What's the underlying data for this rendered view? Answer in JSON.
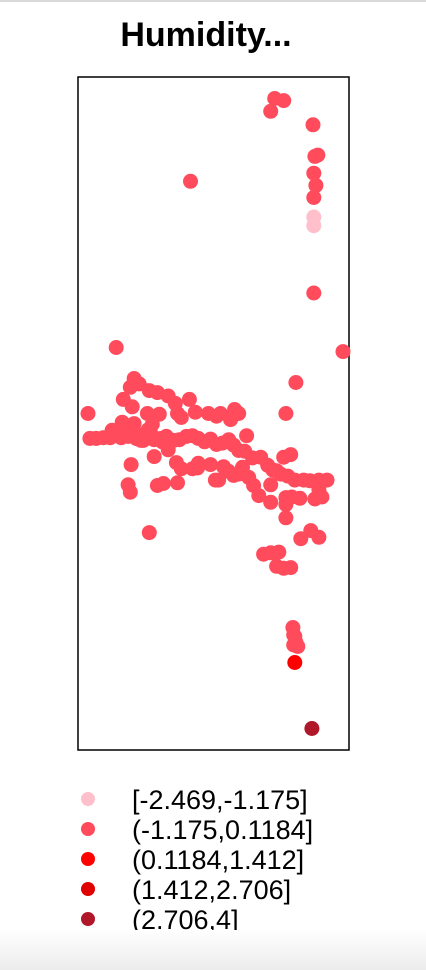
{
  "chart_data": {
    "type": "scatter",
    "title": "Humidity...",
    "xlabel": "",
    "ylabel": "",
    "xlim": [
      0,
      100
    ],
    "ylim": [
      0,
      100
    ],
    "grid": false,
    "legend_position": "bottom",
    "legend": [
      {
        "label": "[-2.469,-1.175]",
        "color": "#ffc0cb"
      },
      {
        "label": "(-1.175,0.1184]",
        "color": "#ff4b5c"
      },
      {
        "label": "(0.1184,1.412]",
        "color": "#ff0000"
      },
      {
        "label": "(1.412,2.706]",
        "color": "#e00000"
      },
      {
        "label": "(2.706,4]",
        "color": "#b0182a"
      }
    ],
    "series": [
      {
        "class_index": 0,
        "points": [
          [
            87.0,
            79.2
          ],
          [
            87.0,
            77.9
          ]
        ]
      },
      {
        "class_index": 1,
        "points": [
          [
            72.6,
            96.8
          ],
          [
            75.9,
            96.5
          ],
          [
            71.1,
            94.9
          ],
          [
            86.7,
            92.9
          ],
          [
            88.5,
            88.4
          ],
          [
            87.4,
            88.2
          ],
          [
            87.0,
            85.7
          ],
          [
            87.8,
            83.9
          ],
          [
            87.0,
            82.1
          ],
          [
            41.5,
            84.5
          ],
          [
            87.0,
            67.9
          ],
          [
            97.8,
            59.2
          ],
          [
            14.1,
            59.8
          ],
          [
            20.7,
            55.2
          ],
          [
            19.3,
            53.9
          ],
          [
            22.6,
            54.4
          ],
          [
            26.3,
            53.4
          ],
          [
            29.3,
            53.1
          ],
          [
            33.3,
            52.6
          ],
          [
            35.9,
            51.5
          ],
          [
            41.1,
            52.1
          ],
          [
            16.7,
            52.1
          ],
          [
            36.7,
            50.0
          ],
          [
            43.3,
            50.2
          ],
          [
            48.1,
            50.0
          ],
          [
            52.6,
            50.0
          ],
          [
            59.3,
            50.0
          ],
          [
            57.8,
            50.6
          ],
          [
            51.1,
            49.6
          ],
          [
            56.3,
            49.1
          ],
          [
            76.7,
            50.0
          ],
          [
            80.4,
            54.6
          ],
          [
            20.0,
            51.0
          ],
          [
            25.6,
            50.0
          ],
          [
            30.0,
            49.9
          ],
          [
            38.1,
            49.4
          ],
          [
            3.7,
            50.0
          ],
          [
            4.4,
            46.3
          ],
          [
            6.7,
            46.3
          ],
          [
            9.3,
            46.4
          ],
          [
            11.9,
            46.4
          ],
          [
            15.9,
            46.4
          ],
          [
            18.5,
            46.6
          ],
          [
            14.8,
            46.8
          ],
          [
            12.6,
            47.5
          ],
          [
            17.0,
            47.3
          ],
          [
            19.6,
            46.9
          ],
          [
            21.5,
            46.3
          ],
          [
            23.3,
            46.0
          ],
          [
            25.9,
            46.5
          ],
          [
            28.1,
            46.1
          ],
          [
            30.7,
            46.3
          ],
          [
            32.6,
            46.6
          ],
          [
            35.2,
            46.0
          ],
          [
            37.4,
            46.1
          ],
          [
            40.0,
            46.6
          ],
          [
            42.2,
            46.7
          ],
          [
            44.4,
            46.3
          ],
          [
            46.7,
            45.8
          ],
          [
            48.9,
            46.2
          ],
          [
            51.1,
            45.4
          ],
          [
            53.3,
            45.6
          ],
          [
            55.6,
            46.1
          ],
          [
            57.4,
            45.3
          ],
          [
            59.3,
            44.5
          ],
          [
            61.5,
            44.4
          ],
          [
            62.2,
            46.7
          ],
          [
            64.4,
            43.4
          ],
          [
            67.4,
            43.5
          ],
          [
            70.0,
            42.3
          ],
          [
            71.9,
            41.6
          ],
          [
            74.8,
            41.0
          ],
          [
            77.4,
            40.7
          ],
          [
            80.0,
            40.1
          ],
          [
            83.3,
            40.1
          ],
          [
            85.6,
            40.0
          ],
          [
            88.9,
            40.1
          ],
          [
            91.9,
            40.1
          ],
          [
            88.9,
            38.7
          ],
          [
            90.0,
            37.6
          ],
          [
            87.4,
            37.3
          ],
          [
            81.9,
            37.4
          ],
          [
            78.9,
            37.6
          ],
          [
            76.7,
            37.5
          ],
          [
            66.7,
            37.8
          ],
          [
            71.1,
            36.8
          ],
          [
            64.8,
            39.3
          ],
          [
            63.0,
            40.5
          ],
          [
            59.3,
            41.0
          ],
          [
            55.6,
            41.4
          ],
          [
            53.7,
            42.1
          ],
          [
            50.7,
            40.1
          ],
          [
            48.9,
            42.4
          ],
          [
            44.1,
            41.9
          ],
          [
            42.2,
            41.8
          ],
          [
            38.1,
            41.8
          ],
          [
            36.3,
            42.7
          ],
          [
            33.3,
            44.6
          ],
          [
            28.1,
            43.6
          ],
          [
            22.2,
            46.2
          ],
          [
            19.6,
            42.4
          ],
          [
            18.5,
            39.4
          ],
          [
            19.3,
            38.3
          ],
          [
            29.3,
            39.3
          ],
          [
            31.5,
            39.6
          ],
          [
            36.7,
            39.7
          ],
          [
            44.4,
            42.6
          ],
          [
            51.9,
            40.1
          ],
          [
            57.4,
            40.8
          ],
          [
            60.7,
            42.0
          ],
          [
            24.1,
            46.0
          ],
          [
            27.0,
            46.9
          ],
          [
            31.1,
            45.8
          ],
          [
            25.9,
            47.6
          ],
          [
            16.3,
            48.7
          ],
          [
            20.7,
            48.5
          ],
          [
            27.4,
            48.4
          ],
          [
            21.5,
            47.0
          ],
          [
            75.9,
            43.5
          ],
          [
            78.5,
            43.9
          ],
          [
            71.1,
            39.4
          ],
          [
            73.3,
            41.5
          ],
          [
            26.3,
            32.3
          ],
          [
            76.7,
            36.5
          ],
          [
            76.7,
            34.5
          ],
          [
            85.9,
            32.6
          ],
          [
            82.2,
            31.4
          ],
          [
            88.9,
            31.6
          ],
          [
            68.5,
            29.1
          ],
          [
            71.1,
            29.3
          ],
          [
            74.1,
            29.4
          ],
          [
            73.3,
            27.3
          ],
          [
            75.9,
            27.0
          ],
          [
            78.5,
            27.1
          ],
          [
            79.3,
            18.2
          ],
          [
            79.6,
            17.1
          ],
          [
            80.4,
            16.0
          ],
          [
            81.1,
            15.4
          ],
          [
            79.6,
            15.6
          ],
          [
            80.0,
            16.9
          ]
        ]
      },
      {
        "class_index": 2,
        "points": [
          [
            80.0,
            13.0
          ]
        ]
      },
      {
        "class_index": 4,
        "points": [
          [
            86.3,
            3.2
          ]
        ]
      }
    ]
  }
}
